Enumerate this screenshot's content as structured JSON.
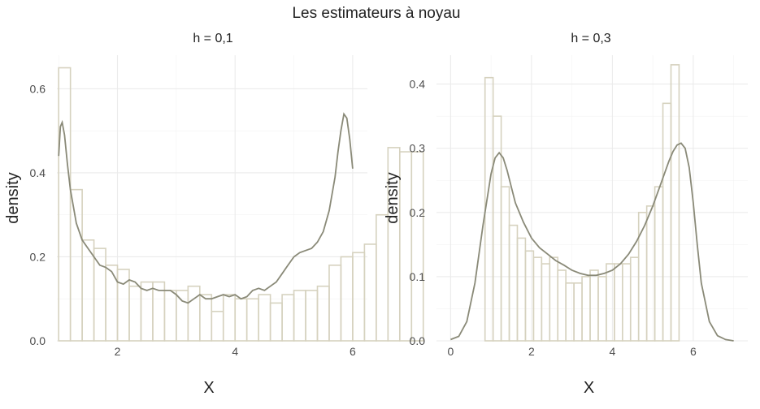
{
  "title": "Les estimateurs à noyau",
  "colors": {
    "bar_outline": "#d6d2bf",
    "density_line": "#8a8a78",
    "grid": "#ebebeb"
  },
  "chart_data": [
    {
      "type": "bar",
      "title": "h = 0,1",
      "xlabel": "X",
      "ylabel": "density",
      "xlim": [
        0.97,
        6.25
      ],
      "ylim": [
        0,
        0.68
      ],
      "xticks": [
        2,
        4,
        6
      ],
      "xtick_labels": [
        "2",
        "4",
        "6"
      ],
      "yticks": [
        0,
        0.2,
        0.4,
        0.6
      ],
      "ytick_labels": [
        "0.0",
        "0.2",
        "0.4",
        "0.6"
      ],
      "bins": {
        "start": 1.0,
        "width": 0.2,
        "values": [
          0.65,
          0.36,
          0.24,
          0.22,
          0.18,
          0.17,
          0.13,
          0.14,
          0.14,
          0.12,
          0.12,
          0.13,
          0.11,
          0.07,
          0.11,
          0.1,
          0.1,
          0.11,
          0.09,
          0.11,
          0.12,
          0.12,
          0.13,
          0.18,
          0.2,
          0.21,
          0.23,
          0.3,
          0.46,
          0.45,
          0.45
        ]
      },
      "density": {
        "x": [
          1.0,
          1.03,
          1.06,
          1.1,
          1.15,
          1.2,
          1.3,
          1.4,
          1.5,
          1.6,
          1.7,
          1.8,
          1.9,
          2.0,
          2.1,
          2.2,
          2.3,
          2.4,
          2.5,
          2.6,
          2.7,
          2.8,
          2.9,
          3.0,
          3.1,
          3.2,
          3.3,
          3.4,
          3.5,
          3.6,
          3.7,
          3.8,
          3.9,
          4.0,
          4.1,
          4.2,
          4.3,
          4.4,
          4.5,
          4.6,
          4.7,
          4.8,
          4.9,
          5.0,
          5.1,
          5.2,
          5.3,
          5.4,
          5.5,
          5.6,
          5.7,
          5.75,
          5.8,
          5.85,
          5.9,
          5.95,
          6.0
        ],
        "y": [
          0.44,
          0.51,
          0.52,
          0.49,
          0.42,
          0.36,
          0.28,
          0.24,
          0.22,
          0.2,
          0.18,
          0.175,
          0.165,
          0.14,
          0.135,
          0.145,
          0.14,
          0.125,
          0.12,
          0.125,
          0.12,
          0.12,
          0.12,
          0.11,
          0.095,
          0.09,
          0.1,
          0.11,
          0.1,
          0.1,
          0.105,
          0.11,
          0.105,
          0.11,
          0.1,
          0.105,
          0.12,
          0.125,
          0.12,
          0.13,
          0.14,
          0.16,
          0.18,
          0.2,
          0.21,
          0.215,
          0.22,
          0.235,
          0.26,
          0.31,
          0.39,
          0.45,
          0.5,
          0.54,
          0.53,
          0.48,
          0.41
        ]
      }
    },
    {
      "type": "bar",
      "title": "h = 0,3",
      "xlabel": "X",
      "ylabel": "density",
      "xlim": [
        -0.35,
        7.35
      ],
      "ylim": [
        0,
        0.445
      ],
      "xticks": [
        0,
        2,
        4,
        6
      ],
      "xtick_labels": [
        "0",
        "2",
        "4",
        "6"
      ],
      "yticks": [
        0,
        0.1,
        0.2,
        0.3,
        0.4
      ],
      "ytick_labels": [
        "0.0",
        "0.1",
        "0.2",
        "0.3",
        "0.4"
      ],
      "bins": {
        "start": 0.85,
        "width": 0.2,
        "values": [
          0.41,
          0.35,
          0.24,
          0.18,
          0.16,
          0.14,
          0.13,
          0.12,
          0.13,
          0.11,
          0.09,
          0.09,
          0.1,
          0.11,
          0.1,
          0.12,
          0.12,
          0.12,
          0.13,
          0.2,
          0.21,
          0.24,
          0.37,
          0.43
        ]
      },
      "density": {
        "x": [
          0.0,
          0.2,
          0.4,
          0.6,
          0.8,
          1.0,
          1.1,
          1.2,
          1.3,
          1.4,
          1.5,
          1.6,
          1.8,
          2.0,
          2.2,
          2.4,
          2.6,
          2.8,
          3.0,
          3.2,
          3.4,
          3.6,
          3.8,
          4.0,
          4.2,
          4.4,
          4.6,
          4.8,
          5.0,
          5.2,
          5.4,
          5.5,
          5.6,
          5.7,
          5.8,
          5.9,
          6.0,
          6.1,
          6.2,
          6.4,
          6.6,
          6.8,
          7.0
        ],
        "y": [
          0.002,
          0.007,
          0.03,
          0.09,
          0.18,
          0.26,
          0.285,
          0.293,
          0.285,
          0.265,
          0.24,
          0.215,
          0.185,
          0.16,
          0.145,
          0.135,
          0.125,
          0.118,
          0.11,
          0.105,
          0.102,
          0.102,
          0.105,
          0.11,
          0.12,
          0.135,
          0.155,
          0.18,
          0.21,
          0.245,
          0.28,
          0.295,
          0.305,
          0.308,
          0.3,
          0.27,
          0.215,
          0.15,
          0.09,
          0.03,
          0.008,
          0.002,
          0.0
        ]
      }
    }
  ]
}
